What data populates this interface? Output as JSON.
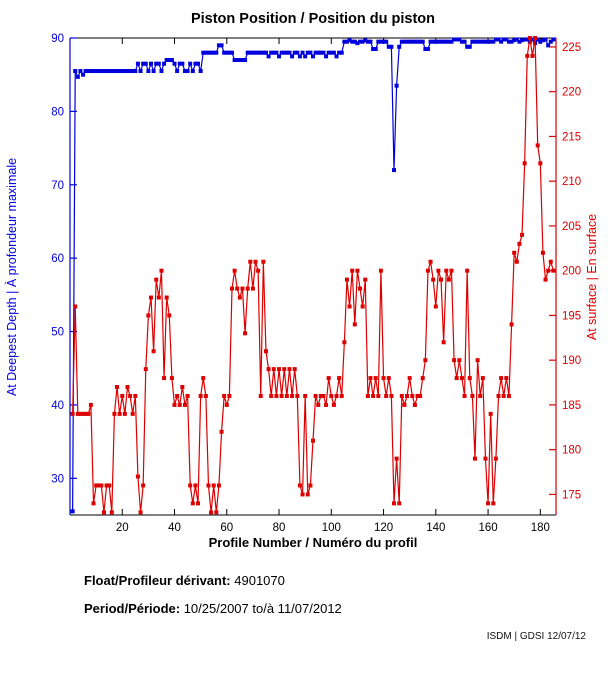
{
  "chart_data": {
    "type": "line",
    "title": "Piston Position / Position du piston",
    "xlabel": "Profile Number / Numéro du profil",
    "grid": false,
    "legend": null,
    "xlim": [
      0,
      186
    ],
    "x_ticks": [
      20,
      40,
      60,
      80,
      100,
      120,
      140,
      160,
      180
    ],
    "left_axis": {
      "label": "At Deepest Depth | À profondeur maximale",
      "color": "#0000dd",
      "lim": [
        25,
        90
      ],
      "ticks": [
        30,
        40,
        50,
        60,
        70,
        80,
        90
      ]
    },
    "right_axis": {
      "label": "At surface | En surface",
      "color": "#dd0000",
      "lim": [
        172.7,
        226
      ],
      "ticks": [
        175,
        180,
        185,
        190,
        195,
        200,
        205,
        210,
        215,
        220,
        225
      ]
    },
    "series": [
      {
        "name": "At Deepest Depth | À profondeur maximale",
        "axis": "left",
        "color": "#0000dd",
        "marker": "square",
        "x_start": 1,
        "values": [
          25.5,
          85.5,
          84.7,
          85.5,
          85,
          85.5,
          85.5,
          85.5,
          85.5,
          85.5,
          85.5,
          85.5,
          85.5,
          85.5,
          85.5,
          85.5,
          85.5,
          85.5,
          85.5,
          85.5,
          85.5,
          85.5,
          85.5,
          85.5,
          85.5,
          86.5,
          85.5,
          86.5,
          86.5,
          85.5,
          86.5,
          85.5,
          86.5,
          86.5,
          85.5,
          86.5,
          87,
          87,
          87,
          86.5,
          85.5,
          86.5,
          86.5,
          85.5,
          85.5,
          86.5,
          85.5,
          86.5,
          86.5,
          85.5,
          88,
          88,
          88,
          88,
          88,
          88,
          89,
          89,
          88,
          88,
          88,
          88,
          87,
          87,
          87,
          87,
          87,
          88,
          88,
          88,
          88,
          88,
          88,
          88,
          88,
          87.5,
          88,
          88,
          88,
          87.5,
          88,
          88,
          88,
          88,
          87.5,
          88,
          88,
          87.5,
          88,
          87.5,
          88,
          88,
          87.5,
          88,
          88,
          88,
          88,
          87.5,
          88,
          88,
          88,
          87.5,
          88,
          88,
          89.5,
          89.5,
          89.7,
          89.5,
          89.5,
          89.3,
          89.5,
          89.5,
          89.7,
          89.5,
          89.5,
          88.5,
          88.5,
          89.5,
          89.5,
          89.5,
          89.5,
          88.8,
          88.8,
          72,
          83.5,
          88.8,
          89.5,
          89.5,
          89.5,
          89.5,
          89.5,
          89.5,
          89.5,
          89.5,
          89.5,
          88.5,
          88.5,
          89.5,
          89.5,
          89.5,
          89.5,
          89.5,
          89.5,
          89.5,
          89.5,
          89.5,
          89.8,
          89.8,
          89.8,
          89.5,
          89.5,
          88.8,
          88.8,
          89.5,
          89.5,
          89.5,
          89.5,
          89.5,
          89.5,
          89.5,
          89.5,
          89.5,
          89.8,
          89.8,
          89.5,
          89.8,
          89.8,
          89.5,
          89.5,
          89.7,
          89.8,
          89.5,
          89.7,
          89.8,
          89.8,
          89.5,
          89.8,
          89.3,
          89.8,
          89.5,
          89.7,
          89.8,
          89,
          89.5,
          89.8
        ]
      },
      {
        "name": "At surface | En surface",
        "axis": "right",
        "color": "#dd0000",
        "marker": "square",
        "x_start": 1,
        "values": [
          184,
          196,
          184,
          184,
          184,
          184,
          184,
          185,
          174,
          176,
          176,
          176,
          173,
          176,
          176,
          173,
          184,
          187,
          184,
          186,
          184,
          187,
          186,
          184,
          186,
          177,
          173,
          176,
          189,
          195,
          197,
          191,
          199,
          197,
          200,
          188,
          197,
          195,
          188,
          185,
          186,
          185,
          187,
          185,
          186,
          176,
          174,
          176,
          174,
          186,
          188,
          186,
          176,
          173,
          176,
          173,
          176,
          182,
          186,
          185,
          186,
          198,
          200,
          198,
          197,
          198,
          193,
          198,
          201,
          198,
          201,
          200,
          186,
          201,
          191,
          189,
          186,
          189,
          186,
          189,
          186,
          189,
          186,
          189,
          186,
          189,
          186,
          176,
          175,
          186,
          175,
          176,
          181,
          186,
          185,
          186,
          186,
          185,
          188,
          186,
          185,
          186,
          188,
          186,
          192,
          199,
          196,
          200,
          194,
          200,
          198,
          196,
          199,
          186,
          188,
          186,
          188,
          186,
          200,
          188,
          186,
          188,
          186,
          174,
          179,
          174,
          186,
          185,
          186,
          188,
          186,
          185,
          186,
          186,
          188,
          190,
          200,
          201,
          199,
          196,
          200,
          199,
          192,
          200,
          199,
          200,
          190,
          188,
          190,
          188,
          186,
          200,
          188,
          186,
          179,
          190,
          186,
          188,
          179,
          174,
          184,
          174,
          179,
          186,
          188,
          186,
          188,
          186,
          194,
          202,
          201,
          203,
          204,
          212,
          224,
          226,
          224,
          226,
          214,
          212,
          202,
          199,
          200,
          201,
          200
        ]
      }
    ]
  },
  "footer": {
    "float_label": "Float/Profileur dérivant:",
    "float_value": "4901070",
    "period_label": "Period/Période:",
    "period_value": "10/25/2007  to/à  11/07/2012",
    "credit": "ISDM | GDSI 12/07/12"
  }
}
